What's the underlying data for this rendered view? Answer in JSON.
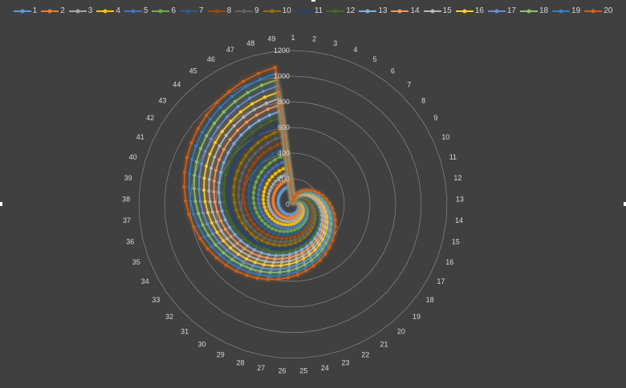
{
  "chart_data": {
    "type": "radar",
    "title": "",
    "legend_position": "top",
    "radial_axis": {
      "min": 0,
      "max": 1200,
      "step": 200,
      "ticks": [
        "0",
        "200",
        "400",
        "600",
        "800",
        "1000",
        "1200"
      ]
    },
    "grid": true,
    "background": "#404040",
    "categories": [
      "1",
      "2",
      "3",
      "4",
      "5",
      "6",
      "7",
      "8",
      "9",
      "10",
      "11",
      "12",
      "13",
      "14",
      "15",
      "16",
      "17",
      "18",
      "19",
      "20",
      "21",
      "22",
      "23",
      "24",
      "25",
      "26",
      "27",
      "28",
      "29",
      "30",
      "31",
      "32",
      "33",
      "34",
      "35",
      "36",
      "37",
      "38",
      "39",
      "40",
      "41",
      "42",
      "43",
      "44",
      "45",
      "46",
      "47",
      "48",
      "49"
    ],
    "series": [
      {
        "name": "1",
        "color": "#5B9BD5",
        "values": [
          3,
          6,
          9,
          12,
          15,
          18,
          21,
          24,
          27,
          30,
          33,
          36,
          39,
          42,
          45,
          48,
          51,
          54,
          57,
          60,
          63,
          66,
          69,
          72,
          75,
          78,
          81,
          84,
          87,
          90,
          93,
          96,
          99,
          102,
          105,
          108,
          111,
          114,
          117,
          120,
          123,
          126,
          129,
          132,
          135,
          138,
          141,
          144,
          147
        ]
      },
      {
        "name": "2",
        "color": "#ED7D31",
        "values": [
          4,
          8,
          12,
          16,
          20,
          24,
          28,
          32,
          36,
          40,
          44,
          48,
          52,
          56,
          60,
          64,
          68,
          72,
          76,
          80,
          84,
          88,
          92,
          96,
          100,
          104,
          108,
          112,
          116,
          120,
          124,
          128,
          132,
          136,
          140,
          144,
          148,
          152,
          156,
          160,
          164,
          168,
          172,
          176,
          180,
          184,
          188,
          192,
          196
        ]
      },
      {
        "name": "3",
        "color": "#A5A5A5",
        "values": [
          5,
          10,
          15,
          20,
          25,
          30,
          35,
          40,
          45,
          50,
          55,
          60,
          65,
          70,
          75,
          80,
          85,
          90,
          95,
          100,
          105,
          110,
          115,
          120,
          125,
          130,
          135,
          140,
          145,
          150,
          155,
          160,
          165,
          170,
          175,
          180,
          185,
          190,
          195,
          200,
          205,
          210,
          215,
          220,
          225,
          230,
          235,
          240,
          245
        ]
      },
      {
        "name": "4",
        "color": "#FFC000",
        "values": [
          6,
          12,
          18,
          24,
          30,
          36,
          42,
          48,
          54,
          60,
          66,
          72,
          78,
          84,
          90,
          96,
          102,
          108,
          114,
          120,
          126,
          132,
          138,
          144,
          150,
          156,
          162,
          168,
          174,
          180,
          186,
          192,
          198,
          204,
          210,
          216,
          222,
          228,
          234,
          240,
          246,
          252,
          258,
          264,
          270,
          276,
          282,
          288,
          294
        ]
      },
      {
        "name": "5",
        "color": "#4472C4",
        "values": [
          7,
          14,
          21,
          28,
          35,
          42,
          49,
          56,
          63,
          70,
          77,
          84,
          91,
          98,
          105,
          112,
          119,
          126,
          133,
          140,
          147,
          154,
          161,
          168,
          175,
          182,
          189,
          196,
          203,
          210,
          217,
          224,
          231,
          238,
          245,
          252,
          259,
          266,
          273,
          280,
          287,
          294,
          301,
          308,
          315,
          322,
          329,
          336,
          343
        ]
      },
      {
        "name": "6",
        "color": "#70AD47",
        "values": [
          8,
          16,
          24,
          32,
          40,
          48,
          56,
          64,
          72,
          80,
          88,
          96,
          104,
          112,
          120,
          128,
          136,
          144,
          152,
          160,
          168,
          176,
          184,
          192,
          200,
          208,
          216,
          224,
          232,
          240,
          248,
          256,
          264,
          272,
          280,
          288,
          296,
          304,
          312,
          320,
          328,
          336,
          344,
          352,
          360,
          368,
          376,
          384,
          392
        ]
      },
      {
        "name": "7",
        "color": "#255E91",
        "values": [
          9,
          18,
          27,
          36,
          45,
          54,
          63,
          72,
          81,
          90,
          99,
          108,
          117,
          126,
          135,
          144,
          153,
          162,
          171,
          180,
          189,
          198,
          207,
          216,
          225,
          234,
          243,
          252,
          261,
          270,
          279,
          288,
          297,
          306,
          315,
          324,
          333,
          342,
          351,
          360,
          369,
          378,
          387,
          396,
          405,
          414,
          423,
          432,
          441
        ]
      },
      {
        "name": "8",
        "color": "#9E480E",
        "values": [
          10,
          20,
          30,
          40,
          50,
          60,
          70,
          80,
          90,
          100,
          110,
          120,
          130,
          140,
          150,
          160,
          170,
          180,
          190,
          200,
          210,
          220,
          230,
          240,
          250,
          260,
          270,
          280,
          290,
          300,
          310,
          320,
          330,
          340,
          350,
          360,
          370,
          380,
          390,
          400,
          410,
          420,
          430,
          440,
          450,
          460,
          470,
          480,
          490
        ]
      },
      {
        "name": "9",
        "color": "#636363",
        "values": [
          11,
          22,
          33,
          44,
          55,
          66,
          77,
          88,
          99,
          110,
          121,
          132,
          143,
          154,
          165,
          176,
          187,
          198,
          209,
          220,
          231,
          242,
          253,
          264,
          275,
          286,
          297,
          308,
          319,
          330,
          341,
          352,
          363,
          374,
          385,
          396,
          407,
          418,
          429,
          440,
          451,
          462,
          473,
          484,
          495,
          506,
          517,
          528,
          539
        ]
      },
      {
        "name": "10",
        "color": "#997300",
        "values": [
          12,
          24,
          36,
          48,
          60,
          72,
          84,
          96,
          108,
          120,
          132,
          144,
          156,
          168,
          180,
          192,
          204,
          216,
          228,
          240,
          252,
          264,
          276,
          288,
          300,
          312,
          324,
          336,
          348,
          360,
          372,
          384,
          396,
          408,
          420,
          432,
          444,
          456,
          468,
          480,
          492,
          504,
          516,
          528,
          540,
          552,
          564,
          576,
          588
        ]
      },
      {
        "name": "11",
        "color": "#264478",
        "values": [
          13,
          26,
          39,
          52,
          65,
          78,
          91,
          104,
          117,
          130,
          143,
          156,
          169,
          182,
          195,
          208,
          221,
          234,
          247,
          260,
          273,
          286,
          299,
          312,
          325,
          338,
          351,
          364,
          377,
          390,
          403,
          416,
          429,
          442,
          455,
          468,
          481,
          494,
          507,
          520,
          533,
          546,
          559,
          572,
          585,
          598,
          611,
          624,
          637
        ]
      },
      {
        "name": "12",
        "color": "#43682B",
        "values": [
          14,
          28,
          42,
          56,
          70,
          84,
          98,
          112,
          126,
          140,
          154,
          168,
          182,
          196,
          210,
          224,
          238,
          252,
          266,
          280,
          294,
          308,
          322,
          336,
          350,
          364,
          378,
          392,
          406,
          420,
          434,
          448,
          462,
          476,
          490,
          504,
          518,
          532,
          546,
          560,
          574,
          588,
          602,
          616,
          630,
          644,
          658,
          672,
          686
        ]
      },
      {
        "name": "13",
        "color": "#7CAFDD",
        "values": [
          15,
          30,
          45,
          60,
          75,
          90,
          105,
          120,
          135,
          150,
          165,
          180,
          195,
          210,
          225,
          240,
          255,
          270,
          285,
          300,
          315,
          330,
          345,
          360,
          375,
          390,
          405,
          420,
          435,
          450,
          465,
          480,
          495,
          510,
          525,
          540,
          555,
          570,
          585,
          600,
          615,
          630,
          645,
          660,
          675,
          690,
          705,
          720,
          735
        ]
      },
      {
        "name": "14",
        "color": "#F1975A",
        "values": [
          16,
          32,
          48,
          64,
          80,
          96,
          112,
          128,
          144,
          160,
          176,
          192,
          208,
          224,
          240,
          256,
          272,
          288,
          304,
          320,
          336,
          352,
          368,
          384,
          400,
          416,
          432,
          448,
          464,
          480,
          496,
          512,
          528,
          544,
          560,
          576,
          592,
          608,
          624,
          640,
          656,
          672,
          688,
          704,
          720,
          736,
          752,
          768,
          784
        ]
      },
      {
        "name": "15",
        "color": "#B7B7B7",
        "values": [
          17,
          34,
          51,
          68,
          85,
          102,
          119,
          136,
          153,
          170,
          187,
          204,
          221,
          238,
          255,
          272,
          289,
          306,
          323,
          340,
          357,
          374,
          391,
          408,
          425,
          442,
          459,
          476,
          493,
          510,
          527,
          544,
          561,
          578,
          595,
          612,
          629,
          646,
          663,
          680,
          697,
          714,
          731,
          748,
          765,
          782,
          799,
          816,
          833
        ]
      },
      {
        "name": "16",
        "color": "#FFCD33",
        "values": [
          18,
          36,
          54,
          72,
          90,
          108,
          126,
          144,
          162,
          180,
          198,
          216,
          234,
          252,
          270,
          288,
          306,
          324,
          342,
          360,
          378,
          396,
          414,
          432,
          450,
          468,
          486,
          504,
          522,
          540,
          558,
          576,
          594,
          612,
          630,
          648,
          666,
          684,
          702,
          720,
          738,
          756,
          774,
          792,
          810,
          828,
          846,
          864,
          882
        ]
      },
      {
        "name": "17",
        "color": "#698ED0",
        "values": [
          19,
          38,
          57,
          76,
          95,
          114,
          133,
          152,
          171,
          190,
          209,
          228,
          247,
          266,
          285,
          304,
          323,
          342,
          361,
          380,
          399,
          418,
          437,
          456,
          475,
          494,
          513,
          532,
          551,
          570,
          589,
          608,
          627,
          646,
          665,
          684,
          703,
          722,
          741,
          760,
          779,
          798,
          817,
          836,
          855,
          874,
          893,
          912,
          931
        ]
      },
      {
        "name": "18",
        "color": "#8CC168",
        "values": [
          20,
          40,
          60,
          80,
          100,
          120,
          140,
          160,
          180,
          200,
          220,
          240,
          260,
          280,
          300,
          320,
          340,
          360,
          380,
          400,
          420,
          440,
          460,
          480,
          500,
          520,
          540,
          560,
          580,
          600,
          620,
          640,
          660,
          680,
          700,
          720,
          740,
          760,
          780,
          800,
          820,
          840,
          860,
          880,
          900,
          920,
          940,
          960,
          980
        ]
      },
      {
        "name": "19",
        "color": "#327DC2",
        "values": [
          21,
          42,
          63,
          84,
          105,
          126,
          147,
          168,
          189,
          210,
          231,
          252,
          273,
          294,
          315,
          336,
          357,
          378,
          399,
          420,
          441,
          462,
          483,
          504,
          525,
          546,
          567,
          588,
          609,
          630,
          651,
          672,
          693,
          714,
          735,
          756,
          777,
          798,
          819,
          840,
          861,
          882,
          903,
          924,
          945,
          966,
          987,
          1008,
          1029
        ]
      },
      {
        "name": "20",
        "color": "#D26012",
        "values": [
          22,
          44,
          66,
          88,
          110,
          132,
          154,
          176,
          198,
          220,
          242,
          264,
          286,
          308,
          330,
          352,
          374,
          396,
          418,
          440,
          462,
          484,
          506,
          528,
          550,
          572,
          594,
          616,
          638,
          660,
          682,
          704,
          726,
          748,
          770,
          792,
          814,
          836,
          858,
          880,
          902,
          924,
          946,
          968,
          990,
          1012,
          1034,
          1056,
          1078
        ]
      }
    ]
  }
}
